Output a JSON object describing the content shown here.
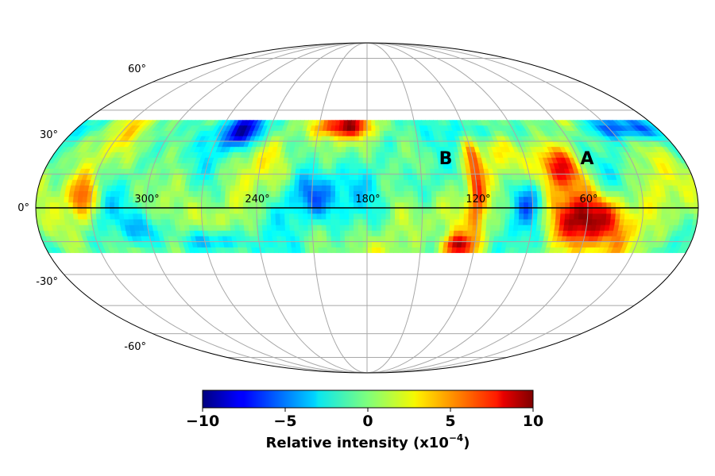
{
  "chart_data": {
    "type": "heatmap",
    "projection": "mollweide",
    "title": "",
    "coverage_latitude_range": [
      -20,
      40
    ],
    "latitude_grid": [
      -60,
      -30,
      0,
      30,
      60
    ],
    "longitude_grid_labels": [
      "300°",
      "240°",
      "180°",
      "120°",
      "60°"
    ],
    "latitude_labels": [
      "60°",
      "30°",
      "0°",
      "-30°",
      "-60°"
    ],
    "grid": true,
    "colormap": "jet",
    "color_range": [
      -10,
      10
    ],
    "colorbar": {
      "ticks": [
        "−10",
        "−5",
        "0",
        "5",
        "10"
      ],
      "label_main": "Relative intensity (x10",
      "label_sup": "−4",
      "label_end": ")"
    },
    "annotations": [
      {
        "text": "A",
        "lon": 60,
        "lat": 30
      },
      {
        "text": "B",
        "lon": 130,
        "lat": 30
      }
    ],
    "features": [
      {
        "name": "A",
        "lon": 60,
        "lat": -5,
        "lon_width": 20,
        "lat_width": 12,
        "value": 10
      },
      {
        "name": "A",
        "lon": 72,
        "lat": 18,
        "lon_width": 12,
        "lat_width": 10,
        "value": 8
      },
      {
        "name": "B",
        "lon": 120,
        "lat": 12,
        "lon_width": 5,
        "lat_width": 25,
        "value": 6
      },
      {
        "name": "",
        "lon": 130,
        "lat": -17,
        "lon_width": 8,
        "lat_width": 5,
        "value": 8
      },
      {
        "name": "",
        "lon": 195,
        "lat": 37,
        "lon_width": 20,
        "lat_width": 5,
        "value": 7
      },
      {
        "name": "",
        "lon": 335,
        "lat": 5,
        "lon_width": 8,
        "lat_width": 10,
        "value": 6
      },
      {
        "name": "",
        "lon": 255,
        "lat": 35,
        "lon_width": 15,
        "lat_width": 8,
        "value": -8
      },
      {
        "name": "",
        "lon": 20,
        "lat": 36,
        "lon_width": 25,
        "lat_width": 5,
        "value": -5
      },
      {
        "name": "",
        "lon": 210,
        "lat": 5,
        "lon_width": 15,
        "lat_width": 12,
        "value": -6
      },
      {
        "name": "",
        "lon": 265,
        "lat": -15,
        "lon_width": 15,
        "lat_width": 6,
        "value": -6
      },
      {
        "name": "",
        "lon": 110,
        "lat": 35,
        "lon_width": 20,
        "lat_width": 6,
        "value": -4
      },
      {
        "name": "",
        "lon": 92,
        "lat": 3,
        "lon_width": 8,
        "lat_width": 10,
        "value": -4
      },
      {
        "name": "",
        "lon": 150,
        "lat": 10,
        "lon_width": 12,
        "lat_width": 10,
        "value": -3
      },
      {
        "name": "",
        "lon": 300,
        "lat": -10,
        "lon_width": 10,
        "lat_width": 8,
        "value": -4
      }
    ]
  }
}
